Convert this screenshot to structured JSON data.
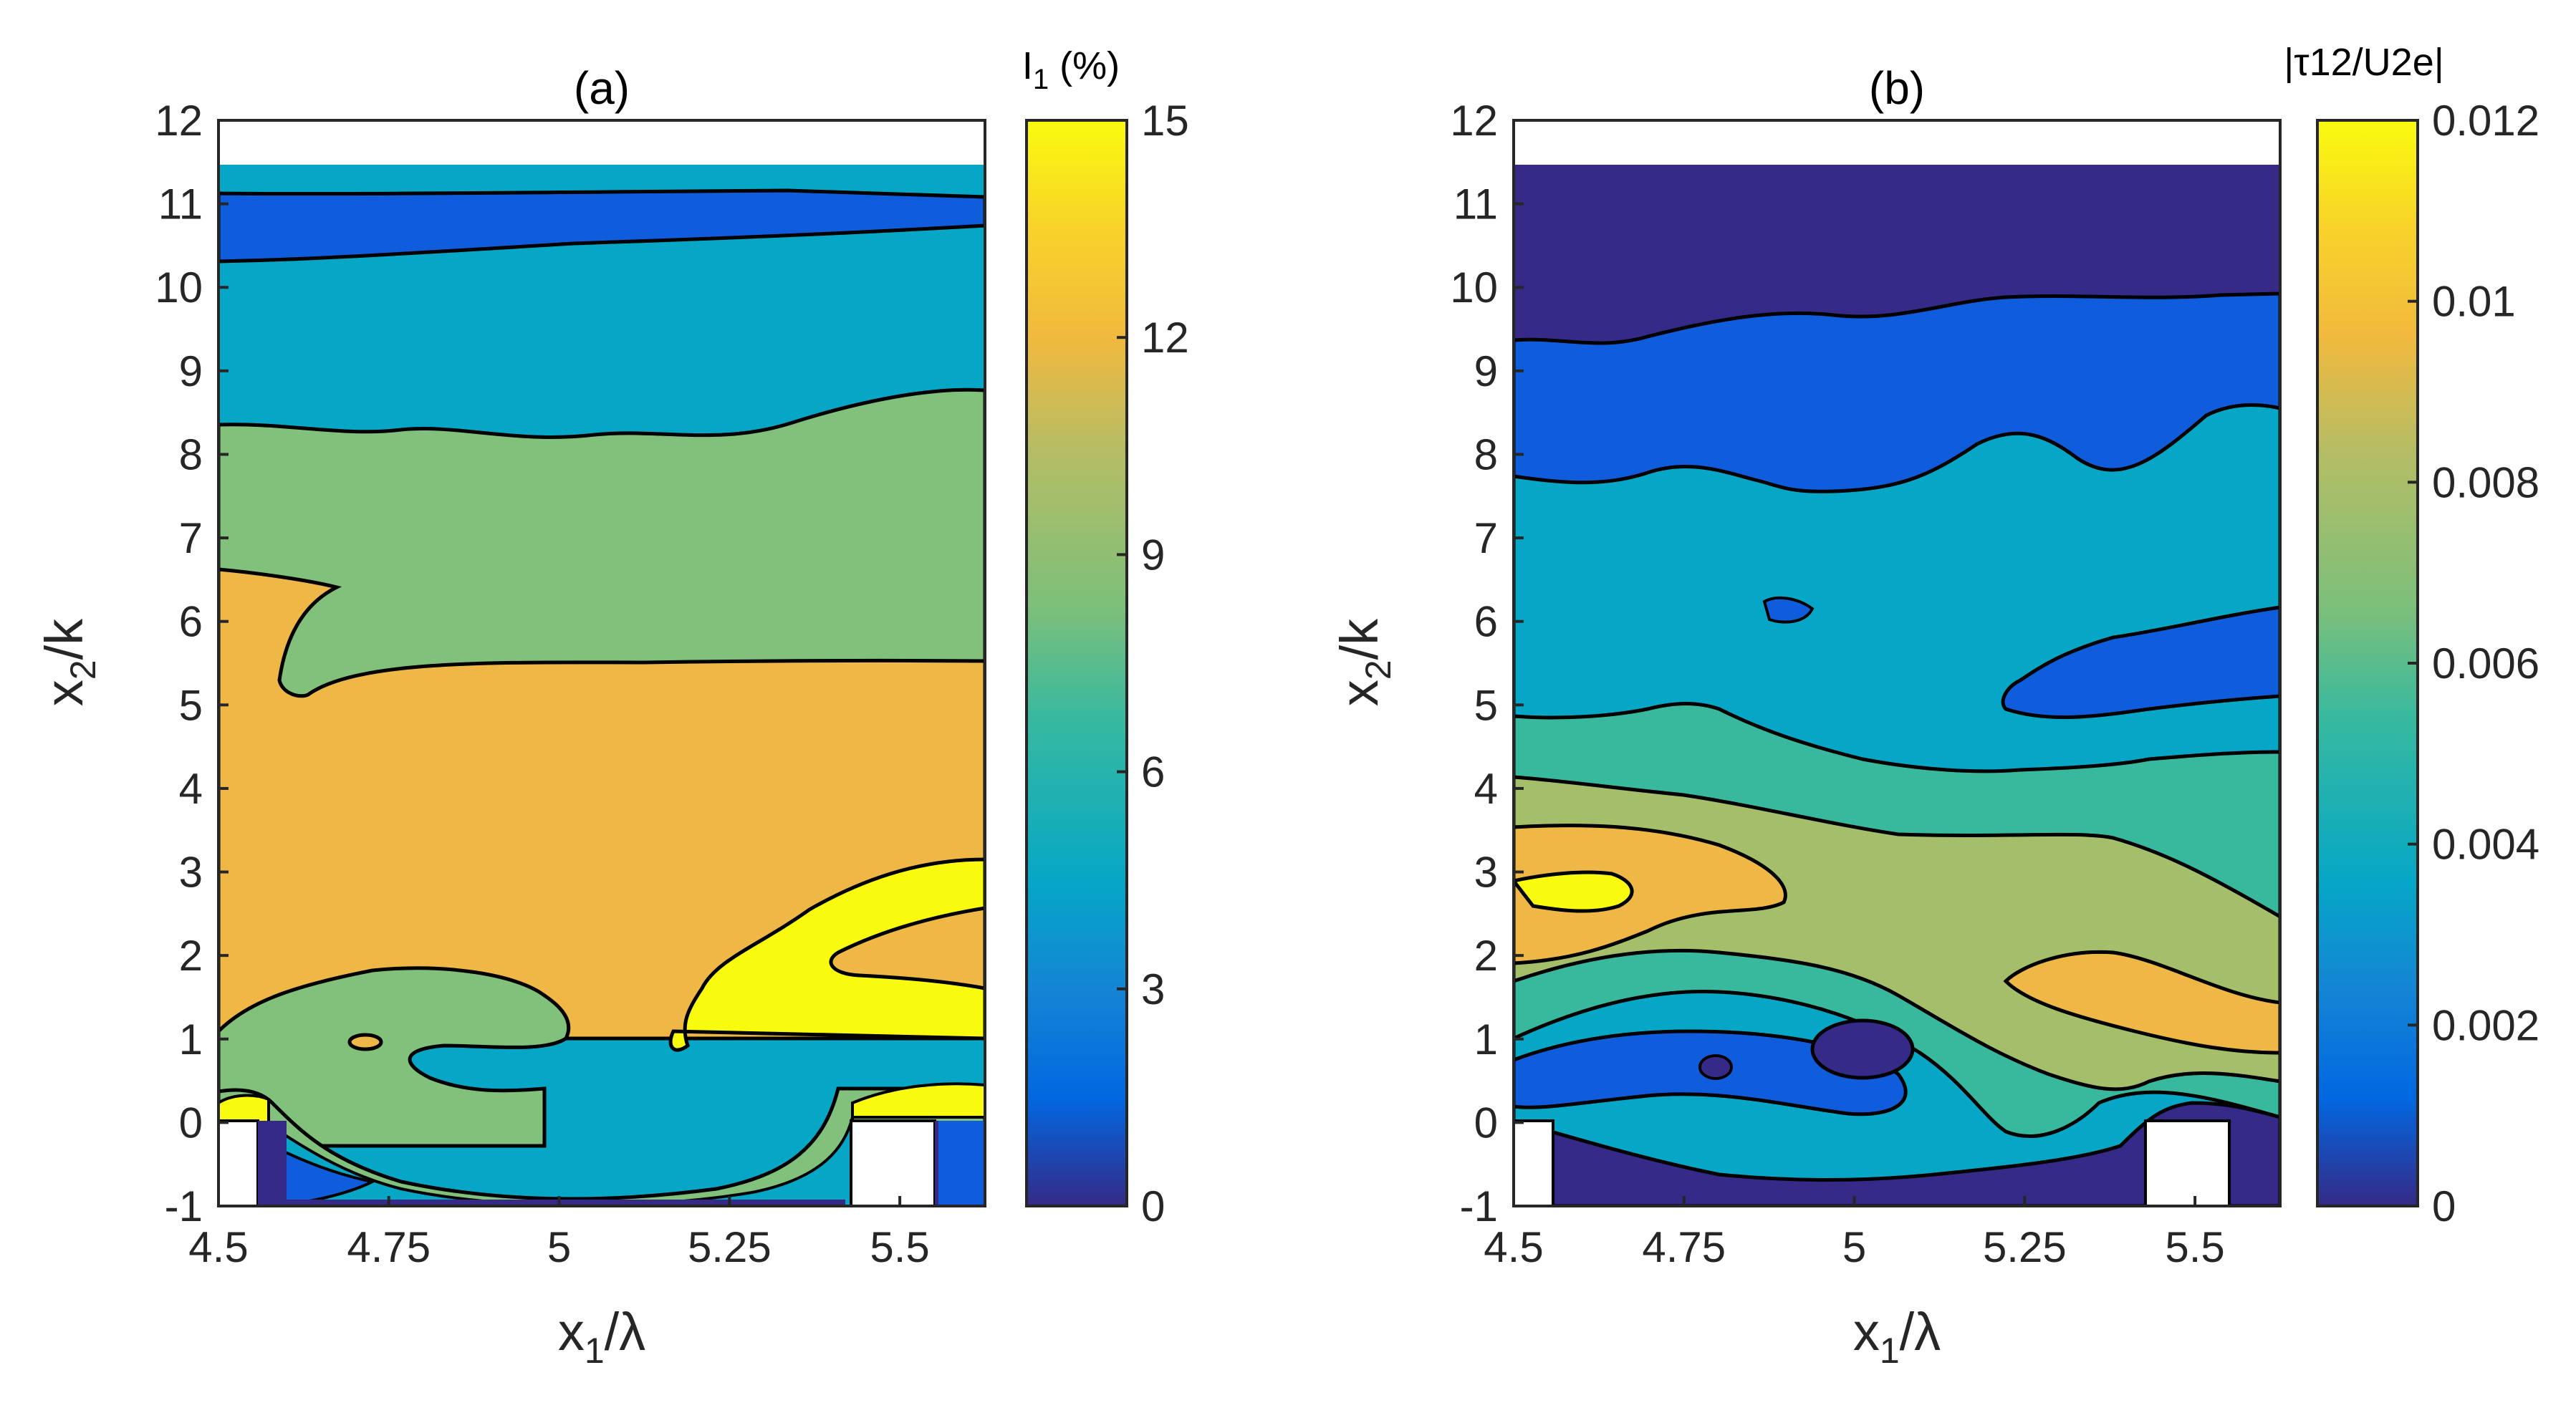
{
  "chart_data": [
    {
      "type": "contour",
      "panel": "(a)",
      "title": "(a)",
      "xlabel_main": "x",
      "xlabel_sub": "1",
      "xlabel_rest": "/λ",
      "ylabel_main": "x",
      "ylabel_sub": "2",
      "ylabel_rest": "/k",
      "xlim": [
        4.5,
        5.625
      ],
      "ylim": [
        -1,
        12
      ],
      "xticks": [
        4.5,
        4.75,
        5,
        5.25,
        5.5
      ],
      "xtick_labels": [
        "4.5",
        "4.75",
        "5",
        "5.25",
        "5.5"
      ],
      "yticks": [
        -1,
        0,
        1,
        2,
        3,
        4,
        5,
        6,
        7,
        8,
        9,
        10,
        11,
        12
      ],
      "ytick_labels": [
        "-1",
        "0",
        "1",
        "2",
        "3",
        "4",
        "5",
        "6",
        "7",
        "8",
        "9",
        "10",
        "11",
        "12"
      ],
      "colorbar_label_main": "I",
      "colorbar_label_sub": "1",
      "colorbar_label_rest": " (%)",
      "colorbar_range": [
        0,
        15
      ],
      "colorbar_ticks": [
        0,
        3,
        6,
        9,
        12,
        15
      ],
      "colorbar_tick_labels": [
        "0",
        "3",
        "6",
        "9",
        "12",
        "15"
      ],
      "levels": [
        0,
        3,
        6,
        9,
        12,
        15
      ],
      "roughness_blocks_x": [
        [
          4.45,
          4.56
        ],
        [
          5.43,
          5.55
        ]
      ],
      "colors": {
        "l0": "#352a87",
        "l1": "#0f5cdd",
        "l2": "#06a7c6",
        "l3": "#81c17c",
        "l4": "#eeb746",
        "l5": "#f9fb0e"
      }
    },
    {
      "type": "contour",
      "panel": "(b)",
      "title": "(b)",
      "xlabel_main": "x",
      "xlabel_sub": "1",
      "xlabel_rest": "/λ",
      "ylabel_main": "x",
      "ylabel_sub": "2",
      "ylabel_rest": "/k",
      "xlim": [
        4.5,
        5.625
      ],
      "ylim": [
        -1,
        12
      ],
      "xticks": [
        4.5,
        4.75,
        5,
        5.25,
        5.5
      ],
      "xtick_labels": [
        "4.5",
        "4.75",
        "5",
        "5.25",
        "5.5"
      ],
      "yticks": [
        -1,
        0,
        1,
        2,
        3,
        4,
        5,
        6,
        7,
        8,
        9,
        10,
        11,
        12
      ],
      "ytick_labels": [
        "-1",
        "0",
        "1",
        "2",
        "3",
        "4",
        "5",
        "6",
        "7",
        "8",
        "9",
        "10",
        "11",
        "12"
      ],
      "colorbar_label": "|τ12/U2e|",
      "colorbar_range": [
        0,
        0.012
      ],
      "colorbar_ticks": [
        0,
        0.002,
        0.004,
        0.006,
        0.008,
        0.01,
        0.012
      ],
      "colorbar_tick_labels": [
        "0",
        "0.002",
        "0.004",
        "0.006",
        "0.008",
        "0.01",
        "0.012"
      ],
      "levels": [
        0,
        0.002,
        0.004,
        0.006,
        0.008,
        0.01,
        0.012
      ],
      "roughness_blocks_x": [
        [
          4.45,
          4.56
        ],
        [
          5.43,
          5.55
        ]
      ],
      "colors": {
        "l0": "#352a87",
        "l1": "#0f5cdd",
        "l2": "#06a7c6",
        "l3": "#38b99e",
        "l4": "#a5be6a",
        "l5": "#eeb746",
        "l6": "#f9fb0e"
      }
    }
  ]
}
